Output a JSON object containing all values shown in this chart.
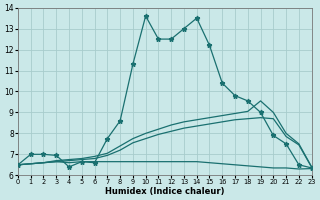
{
  "xlabel": "Humidex (Indice chaleur)",
  "bg_color": "#cae8e8",
  "line_color": "#1a7070",
  "grid_color": "#a8cccc",
  "xlim": [
    0,
    23
  ],
  "ylim": [
    6,
    14
  ],
  "xticks": [
    0,
    1,
    2,
    3,
    4,
    5,
    6,
    7,
    8,
    9,
    10,
    11,
    12,
    13,
    14,
    15,
    16,
    17,
    18,
    19,
    20,
    21,
    22,
    23
  ],
  "yticks": [
    6,
    7,
    8,
    9,
    10,
    11,
    12,
    13,
    14
  ],
  "line1": {
    "x": [
      0,
      1,
      2,
      3,
      4,
      5,
      6,
      7,
      8,
      9,
      10,
      11,
      12,
      13,
      14,
      15,
      16,
      17,
      18,
      19,
      20,
      21,
      22,
      23
    ],
    "y": [
      6.5,
      7.0,
      7.0,
      6.95,
      6.4,
      6.65,
      6.6,
      7.75,
      8.6,
      11.3,
      13.6,
      12.5,
      12.5,
      13.0,
      13.5,
      12.2,
      10.4,
      9.8,
      9.55,
      9.0,
      7.9,
      7.5,
      6.5,
      6.35
    ]
  },
  "line2": {
    "x": [
      0,
      1,
      2,
      3,
      4,
      5,
      6,
      7,
      8,
      9,
      10,
      11,
      12,
      13,
      14,
      15,
      16,
      17,
      18,
      19,
      20,
      21,
      22,
      23
    ],
    "y": [
      6.5,
      6.55,
      6.6,
      6.7,
      6.75,
      6.8,
      6.9,
      7.05,
      7.4,
      7.75,
      8.0,
      8.2,
      8.4,
      8.55,
      8.65,
      8.75,
      8.85,
      8.95,
      9.05,
      9.55,
      9.0,
      8.0,
      7.5,
      6.4
    ]
  },
  "line3": {
    "x": [
      0,
      1,
      2,
      3,
      4,
      5,
      6,
      7,
      8,
      9,
      10,
      11,
      12,
      13,
      14,
      15,
      16,
      17,
      18,
      19,
      20,
      21,
      22,
      23
    ],
    "y": [
      6.5,
      6.55,
      6.6,
      6.65,
      6.7,
      6.75,
      6.8,
      6.95,
      7.2,
      7.55,
      7.75,
      7.95,
      8.1,
      8.25,
      8.35,
      8.45,
      8.55,
      8.65,
      8.7,
      8.75,
      8.7,
      7.85,
      7.45,
      6.38
    ]
  },
  "line4": {
    "x": [
      0,
      1,
      2,
      3,
      4,
      5,
      6,
      7,
      8,
      9,
      10,
      11,
      12,
      13,
      14,
      15,
      16,
      17,
      18,
      19,
      20,
      21,
      22,
      23
    ],
    "y": [
      6.5,
      6.55,
      6.6,
      6.65,
      6.6,
      6.65,
      6.65,
      6.65,
      6.65,
      6.65,
      6.65,
      6.65,
      6.65,
      6.65,
      6.65,
      6.6,
      6.55,
      6.5,
      6.45,
      6.4,
      6.35,
      6.35,
      6.3,
      6.32
    ]
  }
}
